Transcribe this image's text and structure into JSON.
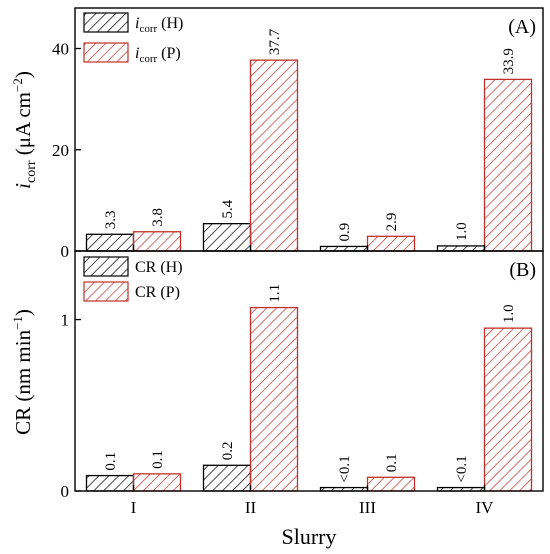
{
  "chart_data": [
    {
      "type": "bar",
      "panel_label": "(A)",
      "categories": [
        "I",
        "II",
        "III",
        "IV"
      ],
      "ylabel_main": "i",
      "ylabel_sub": "corr",
      "ylabel_unit_open": " (μA cm",
      "ylabel_unit_sup": "−2",
      "ylabel_unit_close": ")",
      "ylim": [
        0,
        48
      ],
      "yticks": [
        0,
        20,
        40
      ],
      "series": [
        {
          "name_main": "i",
          "name_sub": "corr",
          "name_tail": " (H)",
          "values": [
            3.3,
            5.4,
            0.9,
            1.0
          ],
          "labels": [
            "3.3",
            "5.4",
            "0.9",
            "1.0"
          ],
          "color": "#000000"
        },
        {
          "name_main": "i",
          "name_sub": "corr",
          "name_tail": " (P)",
          "values": [
            3.8,
            37.7,
            2.9,
            33.9
          ],
          "labels": [
            "3.8",
            "37.7",
            "2.9",
            "33.9"
          ],
          "color": "#c0302a"
        }
      ],
      "legend": "top-left",
      "grid": false
    },
    {
      "type": "bar",
      "panel_label": "(B)",
      "categories": [
        "I",
        "II",
        "III",
        "IV"
      ],
      "ylabel_main": "CR (nm min",
      "ylabel_sup": "−1",
      "ylabel_close": ")",
      "ylim": [
        0,
        1.4
      ],
      "yticks": [
        0,
        1
      ],
      "series": [
        {
          "name": "CR (H)",
          "values": [
            0.09,
            0.15,
            0.02,
            0.02
          ],
          "labels": [
            "0.1",
            "0.2",
            "<0.1",
            "<0.1"
          ],
          "color": "#000000"
        },
        {
          "name": "CR (P)",
          "values": [
            0.1,
            1.07,
            0.08,
            0.95
          ],
          "labels": [
            "0.1",
            "1.1",
            "0.1",
            "1.0"
          ],
          "color": "#c0302a"
        }
      ],
      "legend": "top-left",
      "grid": false
    }
  ],
  "xlabel": "Slurry"
}
